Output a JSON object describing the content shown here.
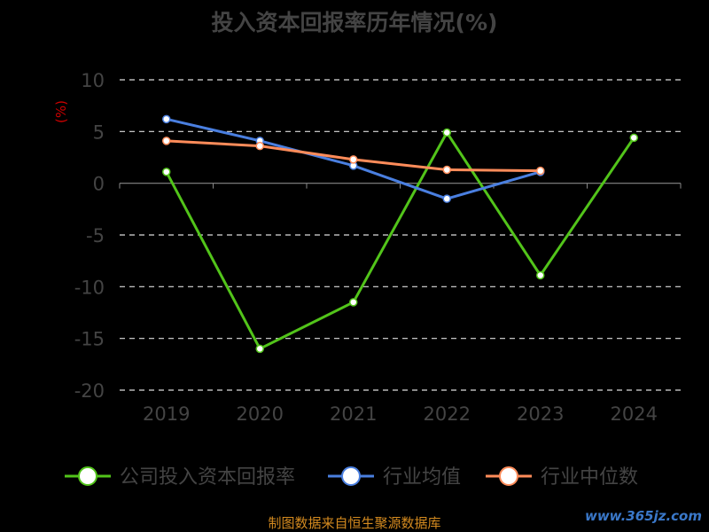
{
  "chart_data": {
    "type": "line",
    "title": "投入资本回报率历年情况(%)",
    "ylabel": "(%)",
    "categories": [
      "2019",
      "2020",
      "2021",
      "2022",
      "2023",
      "2024"
    ],
    "ylim": [
      -20,
      10
    ],
    "yticks": [
      10,
      5,
      0,
      -5,
      -10,
      -15,
      -20
    ],
    "grid": true,
    "legend_position": "bottom",
    "series": [
      {
        "name": "公司投入资本回报率",
        "color": "#52c41a",
        "values": [
          1.1,
          -16.0,
          -11.5,
          4.9,
          -8.9,
          4.4
        ]
      },
      {
        "name": "行业均值",
        "color": "#4a7fe0",
        "values": [
          6.2,
          4.1,
          1.7,
          -1.5,
          1.1,
          null
        ]
      },
      {
        "name": "行业中位数",
        "color": "#ff8c5a",
        "values": [
          4.1,
          3.6,
          2.3,
          1.3,
          1.2,
          null
        ]
      }
    ]
  },
  "footer": {
    "source": "制图数据来自恒生聚源数据库",
    "watermark": "www.365jz.com"
  }
}
